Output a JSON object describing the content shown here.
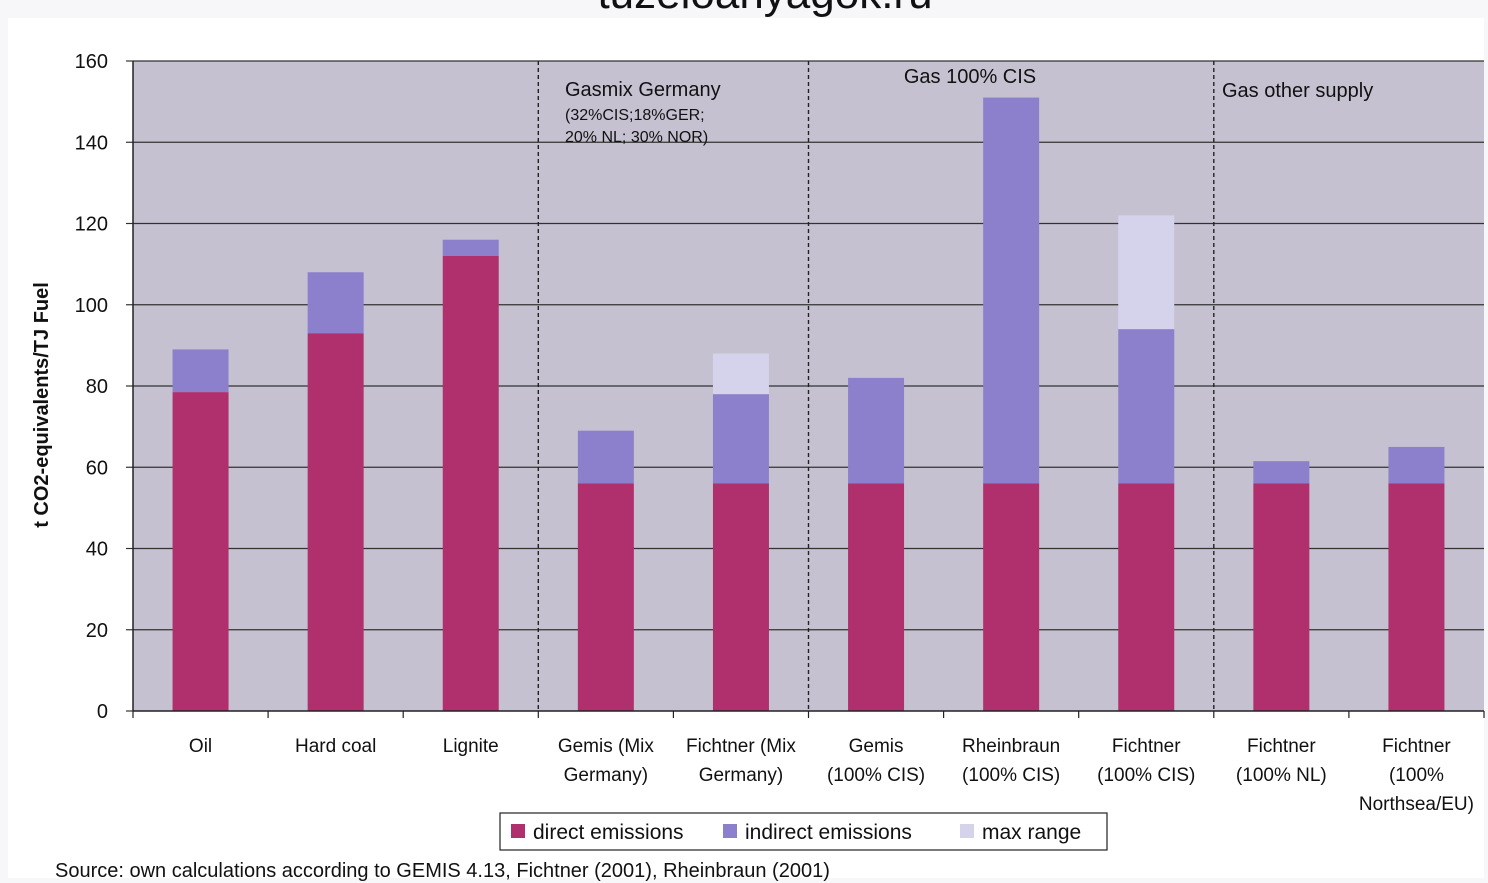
{
  "top_text": "tuzeloanyagok.ru",
  "chart_data": {
    "type": "bar",
    "stacked": true,
    "ylabel": "t CO2-equivalents/TJ Fuel",
    "ylim": [
      0,
      160
    ],
    "yticks": [
      0,
      20,
      40,
      60,
      80,
      100,
      120,
      140,
      160
    ],
    "grid": true,
    "legend_position": "bottom",
    "categories": [
      [
        "Oil"
      ],
      [
        "Hard coal"
      ],
      [
        "Lignite"
      ],
      [
        "Gemis (Mix",
        "Germany)"
      ],
      [
        "Fichtner (Mix",
        "Germany)"
      ],
      [
        "Gemis",
        "(100% CIS)"
      ],
      [
        "Rheinbraun",
        "(100% CIS)"
      ],
      [
        "Fichtner",
        "(100% CIS)"
      ],
      [
        "Fichtner",
        "(100% NL)"
      ],
      [
        "Fichtner",
        "(100%",
        "Northsea/EU)"
      ]
    ],
    "series": [
      {
        "name": "direct emissions",
        "color": "#b0306e",
        "values": [
          78.5,
          93,
          112,
          56,
          56,
          56,
          56,
          56,
          56,
          56
        ]
      },
      {
        "name": "indirect emissions",
        "color": "#8c80cc",
        "values": [
          10.5,
          15,
          4,
          13,
          22,
          26,
          95,
          38,
          5.5,
          9
        ]
      },
      {
        "name": "max range",
        "color": "#d5d2ec",
        "values": [
          0,
          0,
          0,
          0,
          10,
          0,
          0,
          28,
          0,
          0
        ]
      }
    ],
    "annotations": [
      {
        "lines": [
          "Gasmix Germany"
        ],
        "size": "large"
      },
      {
        "lines": [
          "(32%CIS;18%GER;",
          "20% NL; 30% NOR)"
        ],
        "size": "small"
      },
      {
        "lines": [
          "Gas 100% CIS"
        ],
        "size": "large"
      },
      {
        "lines": [
          "Gas other supply"
        ],
        "size": "large"
      }
    ],
    "group_dividers_after_category": [
      3,
      5,
      8
    ]
  },
  "source": "Source: own calculations according to GEMIS 4.13, Fichtner (2001), Rheinbraun (2001)"
}
